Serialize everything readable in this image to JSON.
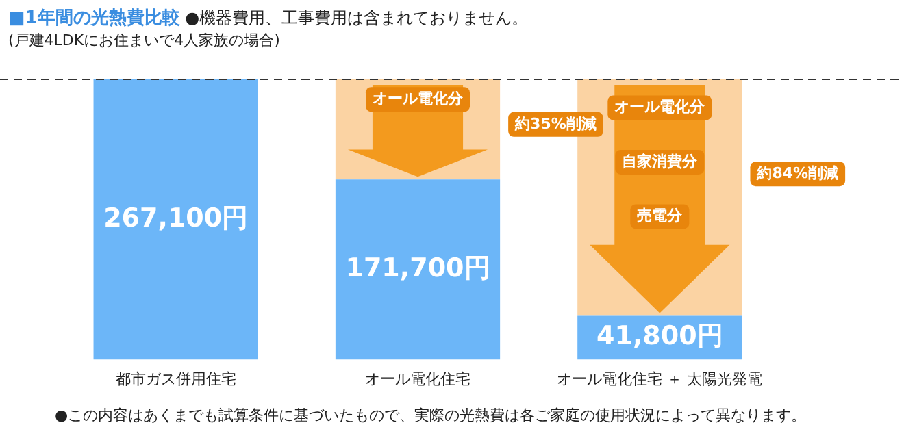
{
  "chart_data": {
    "type": "bar",
    "title": "■1年間の光熱費比較",
    "subtitle": "●機器費用、工事費用は含まれておりません。",
    "categories": [
      "都市ガス併用住宅",
      "オール電化住宅",
      "オール電化住宅 ＋ 太陽光発電"
    ],
    "stacked": true,
    "series": [
      {
        "color": "#6cb6f8",
        "values": [
          267100,
          171700,
          41800
        ],
        "value_labels": [
          "267,100円",
          "171,700円",
          "41,800円"
        ]
      },
      {
        "color": "#fbd3a3",
        "values": [
          null,
          95400,
          225300
        ]
      }
    ],
    "ylim": [
      0,
      267100
    ],
    "tick_labels": "x",
    "grid": false,
    "legend": false,
    "ref_lines": [
      {
        "axis": "y",
        "value": 267100,
        "color": "#333333",
        "line_style": "dashed"
      }
    ],
    "annotations": [
      "(戸建4LDKにお住まいで4人家族の場合)",
      "オール電化分",
      "約35%削減",
      "オール電化分",
      "自家消費分",
      "売電分",
      "約84%削減",
      "●この内容はあくまでも試算条件に基づいたもので、実際の光熱費は各ご家庭の使用状況によって異なります。"
    ]
  }
}
